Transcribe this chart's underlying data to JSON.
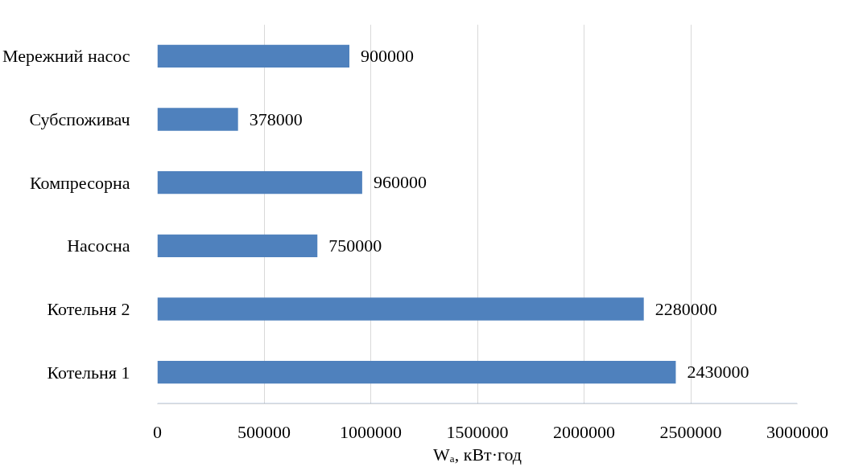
{
  "chart_data": {
    "type": "bar",
    "orientation": "horizontal",
    "categories": [
      "Мережний насос",
      "Субспоживач",
      "Компресорна",
      "Насосна",
      "Котельня 2",
      "Котельня 1"
    ],
    "values": [
      900000,
      378000,
      960000,
      750000,
      2280000,
      2430000
    ],
    "color": "#4f81bd",
    "xlim": [
      0,
      3000000
    ],
    "xticks": [
      0,
      500000,
      1000000,
      1500000,
      2000000,
      2500000,
      3000000
    ],
    "xlabel": "Wₐ, кВт·год",
    "grid": "x",
    "data_labels": true
  }
}
